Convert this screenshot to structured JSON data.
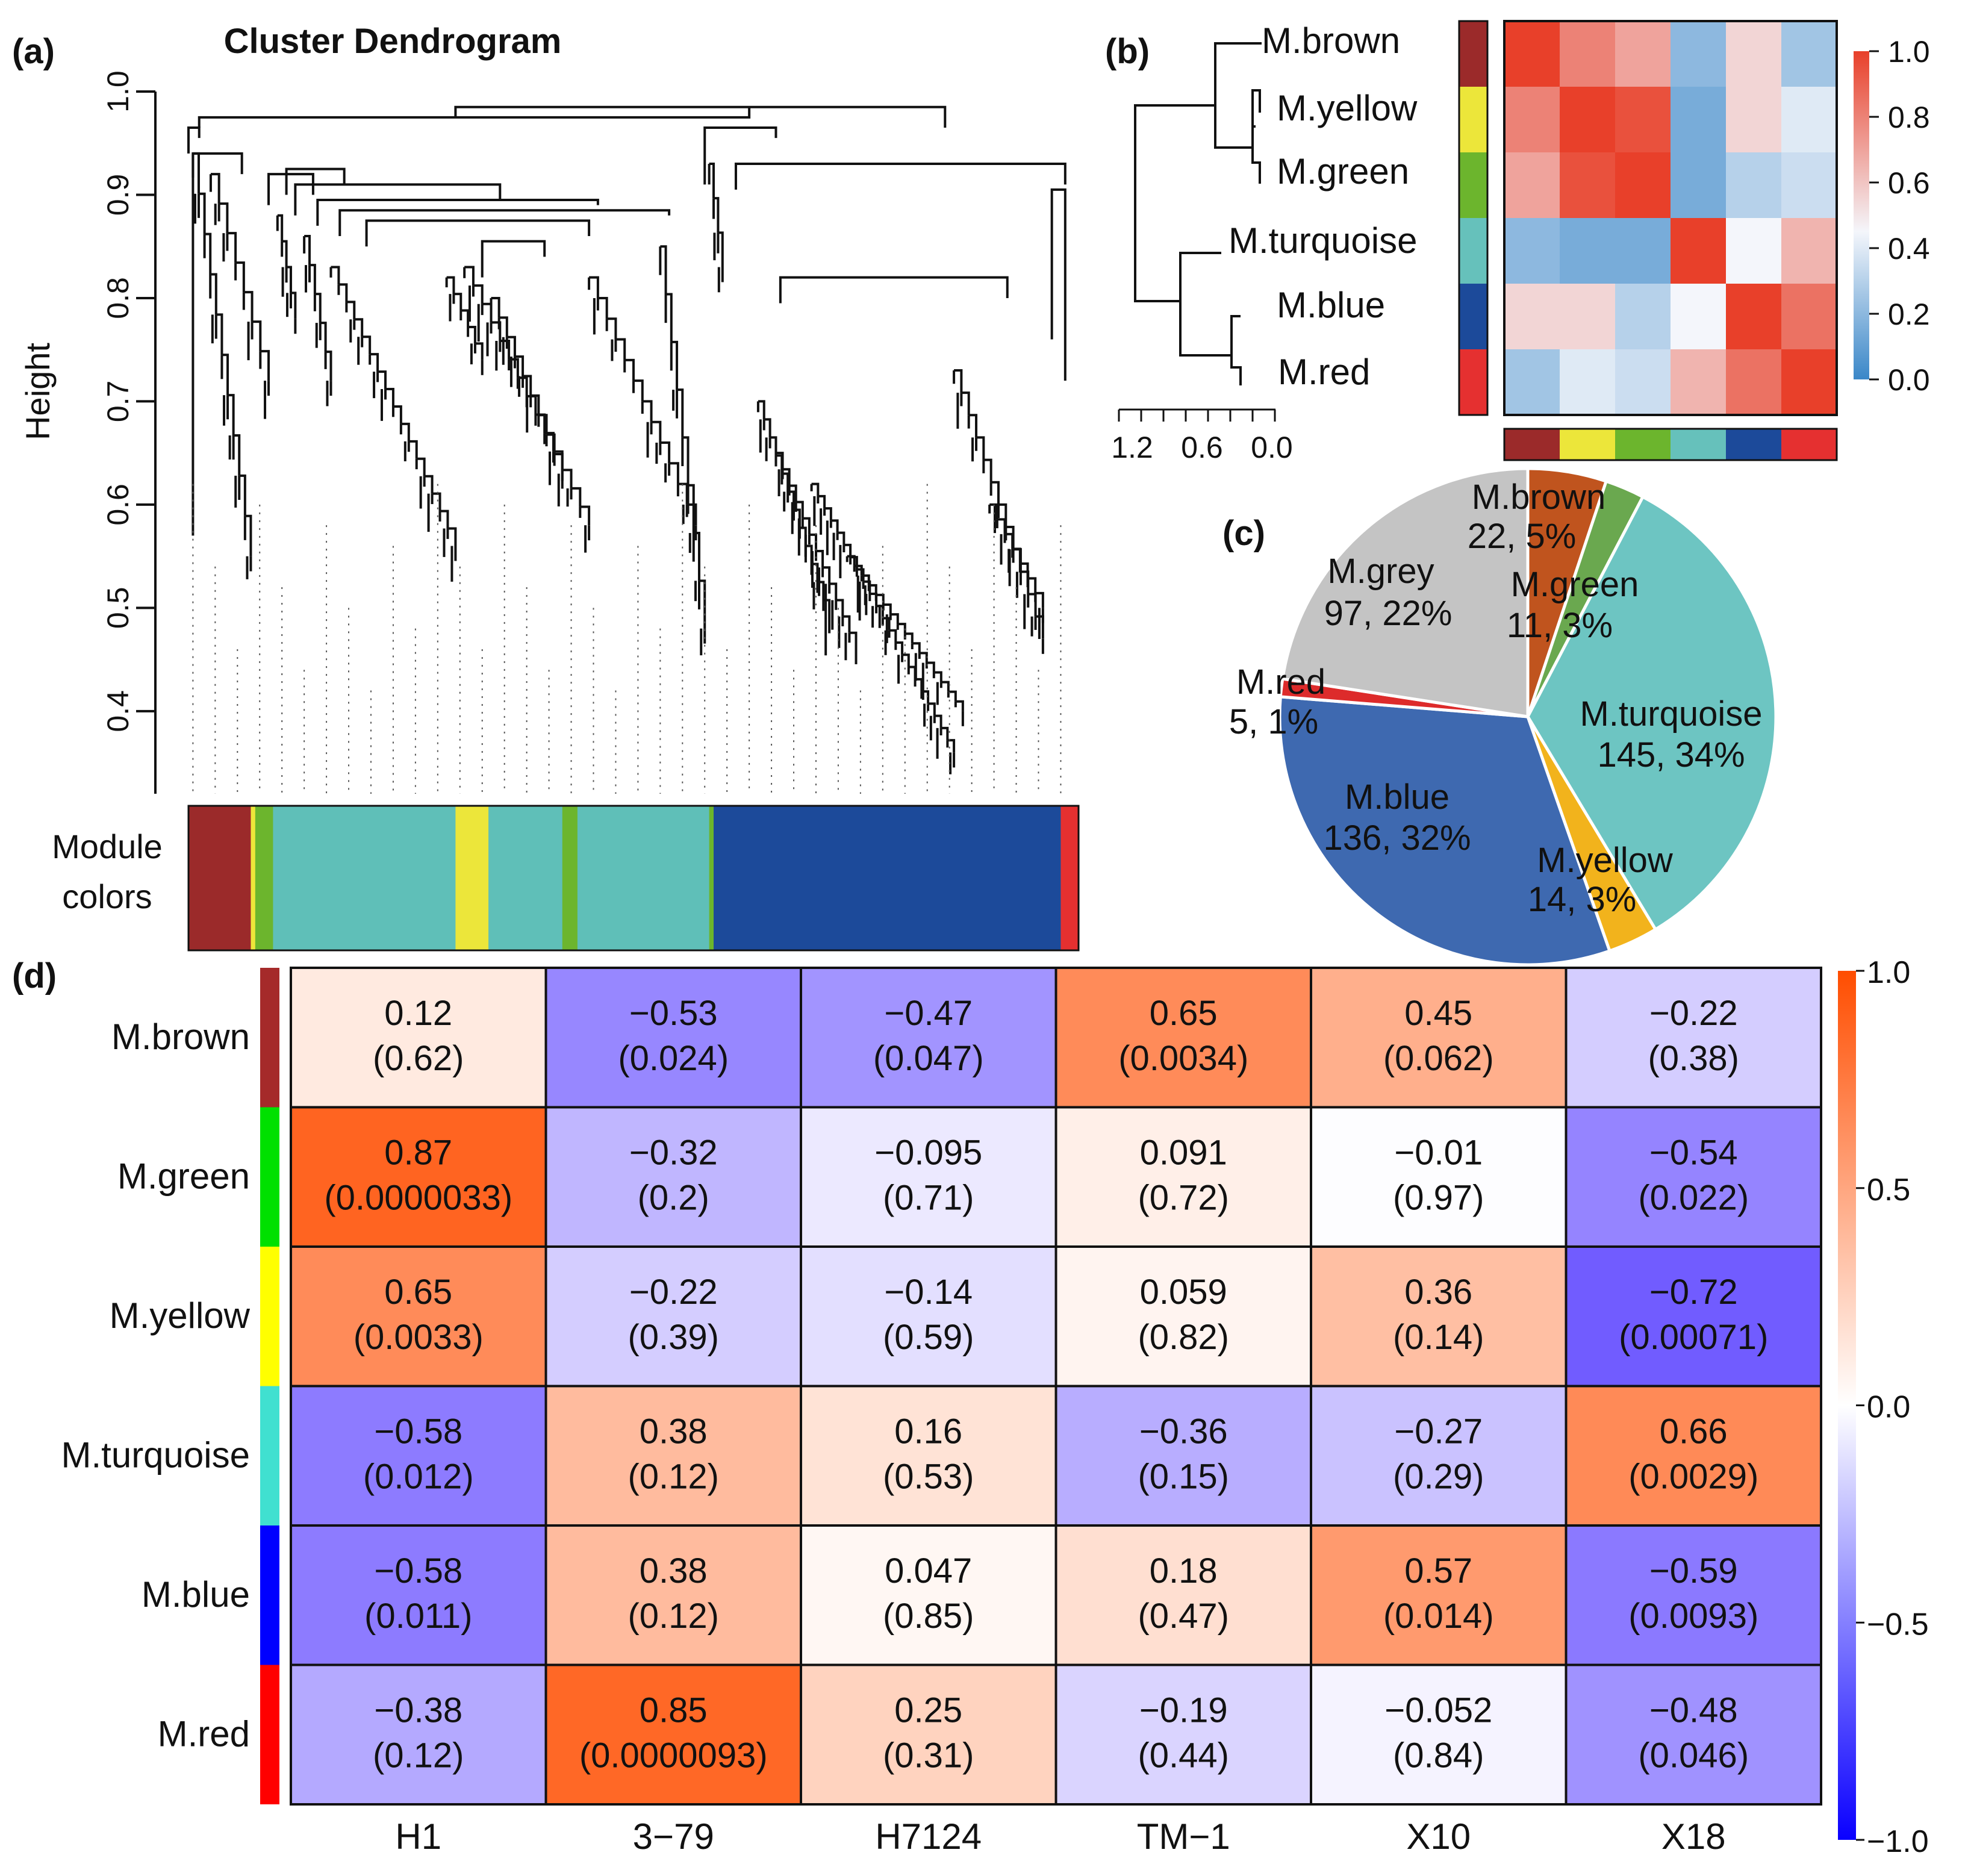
{
  "chart_data": [
    {
      "panel": "(a)",
      "type": "dendrogram",
      "title": "Cluster Dendrogram",
      "ylabel": "Height",
      "ylim": [
        0.32,
        1.0
      ],
      "yticks": [
        "0.4",
        "0.5",
        "0.6",
        "0.7",
        "0.8",
        "0.9",
        "1.0"
      ],
      "color_bar_label": [
        "Module",
        "colors"
      ],
      "module_color_segments": [
        {
          "module": "brown",
          "from": 0.0,
          "to": 0.07
        },
        {
          "module": "yellow",
          "from": 0.07,
          "to": 0.075
        },
        {
          "module": "green",
          "from": 0.075,
          "to": 0.095
        },
        {
          "module": "turquoise",
          "from": 0.095,
          "to": 0.3
        },
        {
          "module": "yellow",
          "from": 0.3,
          "to": 0.337
        },
        {
          "module": "turquoise",
          "from": 0.337,
          "to": 0.42
        },
        {
          "module": "green",
          "from": 0.42,
          "to": 0.437
        },
        {
          "module": "turquoise",
          "from": 0.437,
          "to": 0.585
        },
        {
          "module": "green",
          "from": 0.585,
          "to": 0.59
        },
        {
          "module": "blue",
          "from": 0.59,
          "to": 0.98
        },
        {
          "module": "red",
          "from": 0.98,
          "to": 1.0
        }
      ]
    },
    {
      "panel": "(b)",
      "type": "heatmap",
      "modules": [
        "M.brown",
        "M.yellow",
        "M.green",
        "M.turquoise",
        "M.blue",
        "M.red"
      ],
      "module_colors": [
        "#9b2a2a",
        "#ece63a",
        "#6cb52d",
        "#66c1bb",
        "#1c4a9a",
        "#e53030"
      ],
      "values": [
        [
          1.0,
          0.8,
          0.7,
          0.2,
          0.55,
          0.25
        ],
        [
          0.8,
          1.0,
          0.95,
          0.15,
          0.55,
          0.4
        ],
        [
          0.7,
          0.95,
          1.0,
          0.15,
          0.3,
          0.35
        ],
        [
          0.2,
          0.15,
          0.15,
          1.0,
          0.45,
          0.65
        ],
        [
          0.55,
          0.55,
          0.3,
          0.45,
          1.0,
          0.85
        ],
        [
          0.25,
          0.4,
          0.35,
          0.65,
          0.85,
          1.0
        ]
      ],
      "dendrogram_axis_ticks": [
        "1.2",
        "0.6",
        "0.0"
      ],
      "colorbar_ticks": [
        "1.0",
        "0.8",
        "0.6",
        "0.4",
        "0.2",
        "0.0"
      ],
      "range": [
        0,
        1
      ]
    },
    {
      "panel": "(c)",
      "type": "pie",
      "slices": [
        {
          "name": "M.brown",
          "count": 22,
          "percent": 5,
          "label": "22, 5%",
          "color": "#c0541e"
        },
        {
          "name": "M.green",
          "count": 11,
          "percent": 3,
          "label": "11, 3%",
          "color": "#6aa84f"
        },
        {
          "name": "M.turquoise",
          "count": 145,
          "percent": 34,
          "label": "145, 34%",
          "color": "#6dc5c2"
        },
        {
          "name": "M.yellow",
          "count": 14,
          "percent": 3,
          "label": "14, 3%",
          "color": "#f2b31c"
        },
        {
          "name": "M.blue",
          "count": 136,
          "percent": 32,
          "label": "136, 32%",
          "color": "#3e69b0"
        },
        {
          "name": "M.red",
          "count": 5,
          "percent": 1,
          "label": "5, 1%",
          "color": "#dd2b2b"
        },
        {
          "name": "M.grey",
          "count": 97,
          "percent": 22,
          "label": "97, 22%",
          "color": "#c4c4c4"
        }
      ]
    },
    {
      "panel": "(d)",
      "type": "heatmap",
      "rows": [
        "M.brown",
        "M.green",
        "M.yellow",
        "M.turquoise",
        "M.blue",
        "M.red"
      ],
      "row_colors": [
        "#a52a2a",
        "#00e000",
        "#ffff00",
        "#40e0d0",
        "#0000ff",
        "#ff0000"
      ],
      "columns": [
        "H1",
        "3−79",
        "H7124",
        "TM−1",
        "X10",
        "X18"
      ],
      "values": [
        [
          0.12,
          -0.53,
          -0.47,
          0.65,
          0.45,
          -0.22
        ],
        [
          0.87,
          -0.32,
          -0.095,
          0.091,
          -0.01,
          -0.54
        ],
        [
          0.65,
          -0.22,
          -0.14,
          0.059,
          0.36,
          -0.72
        ],
        [
          -0.58,
          0.38,
          0.16,
          -0.36,
          -0.27,
          0.66
        ],
        [
          -0.58,
          0.38,
          0.047,
          0.18,
          0.57,
          -0.59
        ],
        [
          -0.38,
          0.85,
          0.25,
          -0.19,
          -0.052,
          -0.48
        ]
      ],
      "value_labels": [
        [
          "0.12",
          "−0.53",
          "−0.47",
          "0.65",
          "0.45",
          "−0.22"
        ],
        [
          "0.87",
          "−0.32",
          "−0.095",
          "0.091",
          "−0.01",
          "−0.54"
        ],
        [
          "0.65",
          "−0.22",
          "−0.14",
          "0.059",
          "0.36",
          "−0.72"
        ],
        [
          "−0.58",
          "0.38",
          "0.16",
          "−0.36",
          "−0.27",
          "0.66"
        ],
        [
          "−0.58",
          "0.38",
          "0.047",
          "0.18",
          "0.57",
          "−0.59"
        ],
        [
          "−0.38",
          "0.85",
          "0.25",
          "−0.19",
          "−0.052",
          "−0.48"
        ]
      ],
      "pvalue_labels": [
        [
          "(0.62)",
          "(0.024)",
          "(0.047)",
          "(0.0034)",
          "(0.062)",
          "(0.38)"
        ],
        [
          "(0.0000033)",
          "(0.2)",
          "(0.71)",
          "(0.72)",
          "(0.97)",
          "(0.022)"
        ],
        [
          "(0.0033)",
          "(0.39)",
          "(0.59)",
          "(0.82)",
          "(0.14)",
          "(0.00071)"
        ],
        [
          "(0.012)",
          "(0.12)",
          "(0.53)",
          "(0.15)",
          "(0.29)",
          "(0.0029)"
        ],
        [
          "(0.011)",
          "(0.12)",
          "(0.85)",
          "(0.47)",
          "(0.014)",
          "(0.0093)"
        ],
        [
          "(0.12)",
          "(0.0000093)",
          "(0.31)",
          "(0.44)",
          "(0.84)",
          "(0.046)"
        ]
      ],
      "colorbar_ticks": [
        "1.0",
        "0.5",
        "0.0",
        "−0.5",
        "−1.0"
      ],
      "range": [
        -1,
        1
      ]
    }
  ],
  "panel_labels": {
    "a": "(a)",
    "b": "(b)",
    "c": "(c)",
    "d": "(d)"
  },
  "module_palette": {
    "brown": "#9b2a2a",
    "yellow": "#ece63a",
    "green": "#6cb52d",
    "turquoise": "#5fbfb8",
    "blue": "#1c4a9a",
    "red": "#e53030"
  }
}
